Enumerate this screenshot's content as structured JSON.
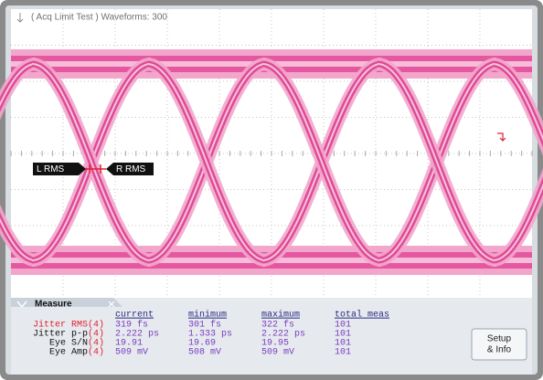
{
  "header": {
    "title": "( Acq Limit Test ) Waveforms: 300"
  },
  "markers": {
    "left": "L RMS",
    "right": "R RMS"
  },
  "measure": {
    "title": "Measure",
    "columns": [
      "current",
      "minimum",
      "maximum",
      "total meas"
    ],
    "rows": [
      {
        "name": "Jitter RMS",
        "channel": "(4)",
        "values": [
          "319 fs",
          "301 fs",
          "322 fs",
          "101"
        ]
      },
      {
        "name": "Jitter p-p",
        "channel": "(4)",
        "values": [
          "2.222 ps",
          "1.333 ps",
          "2.222 ps",
          "101"
        ]
      },
      {
        "name": "Eye S/N",
        "channel": "(4)",
        "values": [
          "19.91",
          "19.69",
          "19.95",
          "101"
        ]
      },
      {
        "name": "Eye Amp",
        "channel": "(4)",
        "values": [
          "509 mV",
          "508 mV",
          "509 mV",
          "101"
        ]
      }
    ],
    "button": [
      "Setup",
      "& Info"
    ]
  }
}
